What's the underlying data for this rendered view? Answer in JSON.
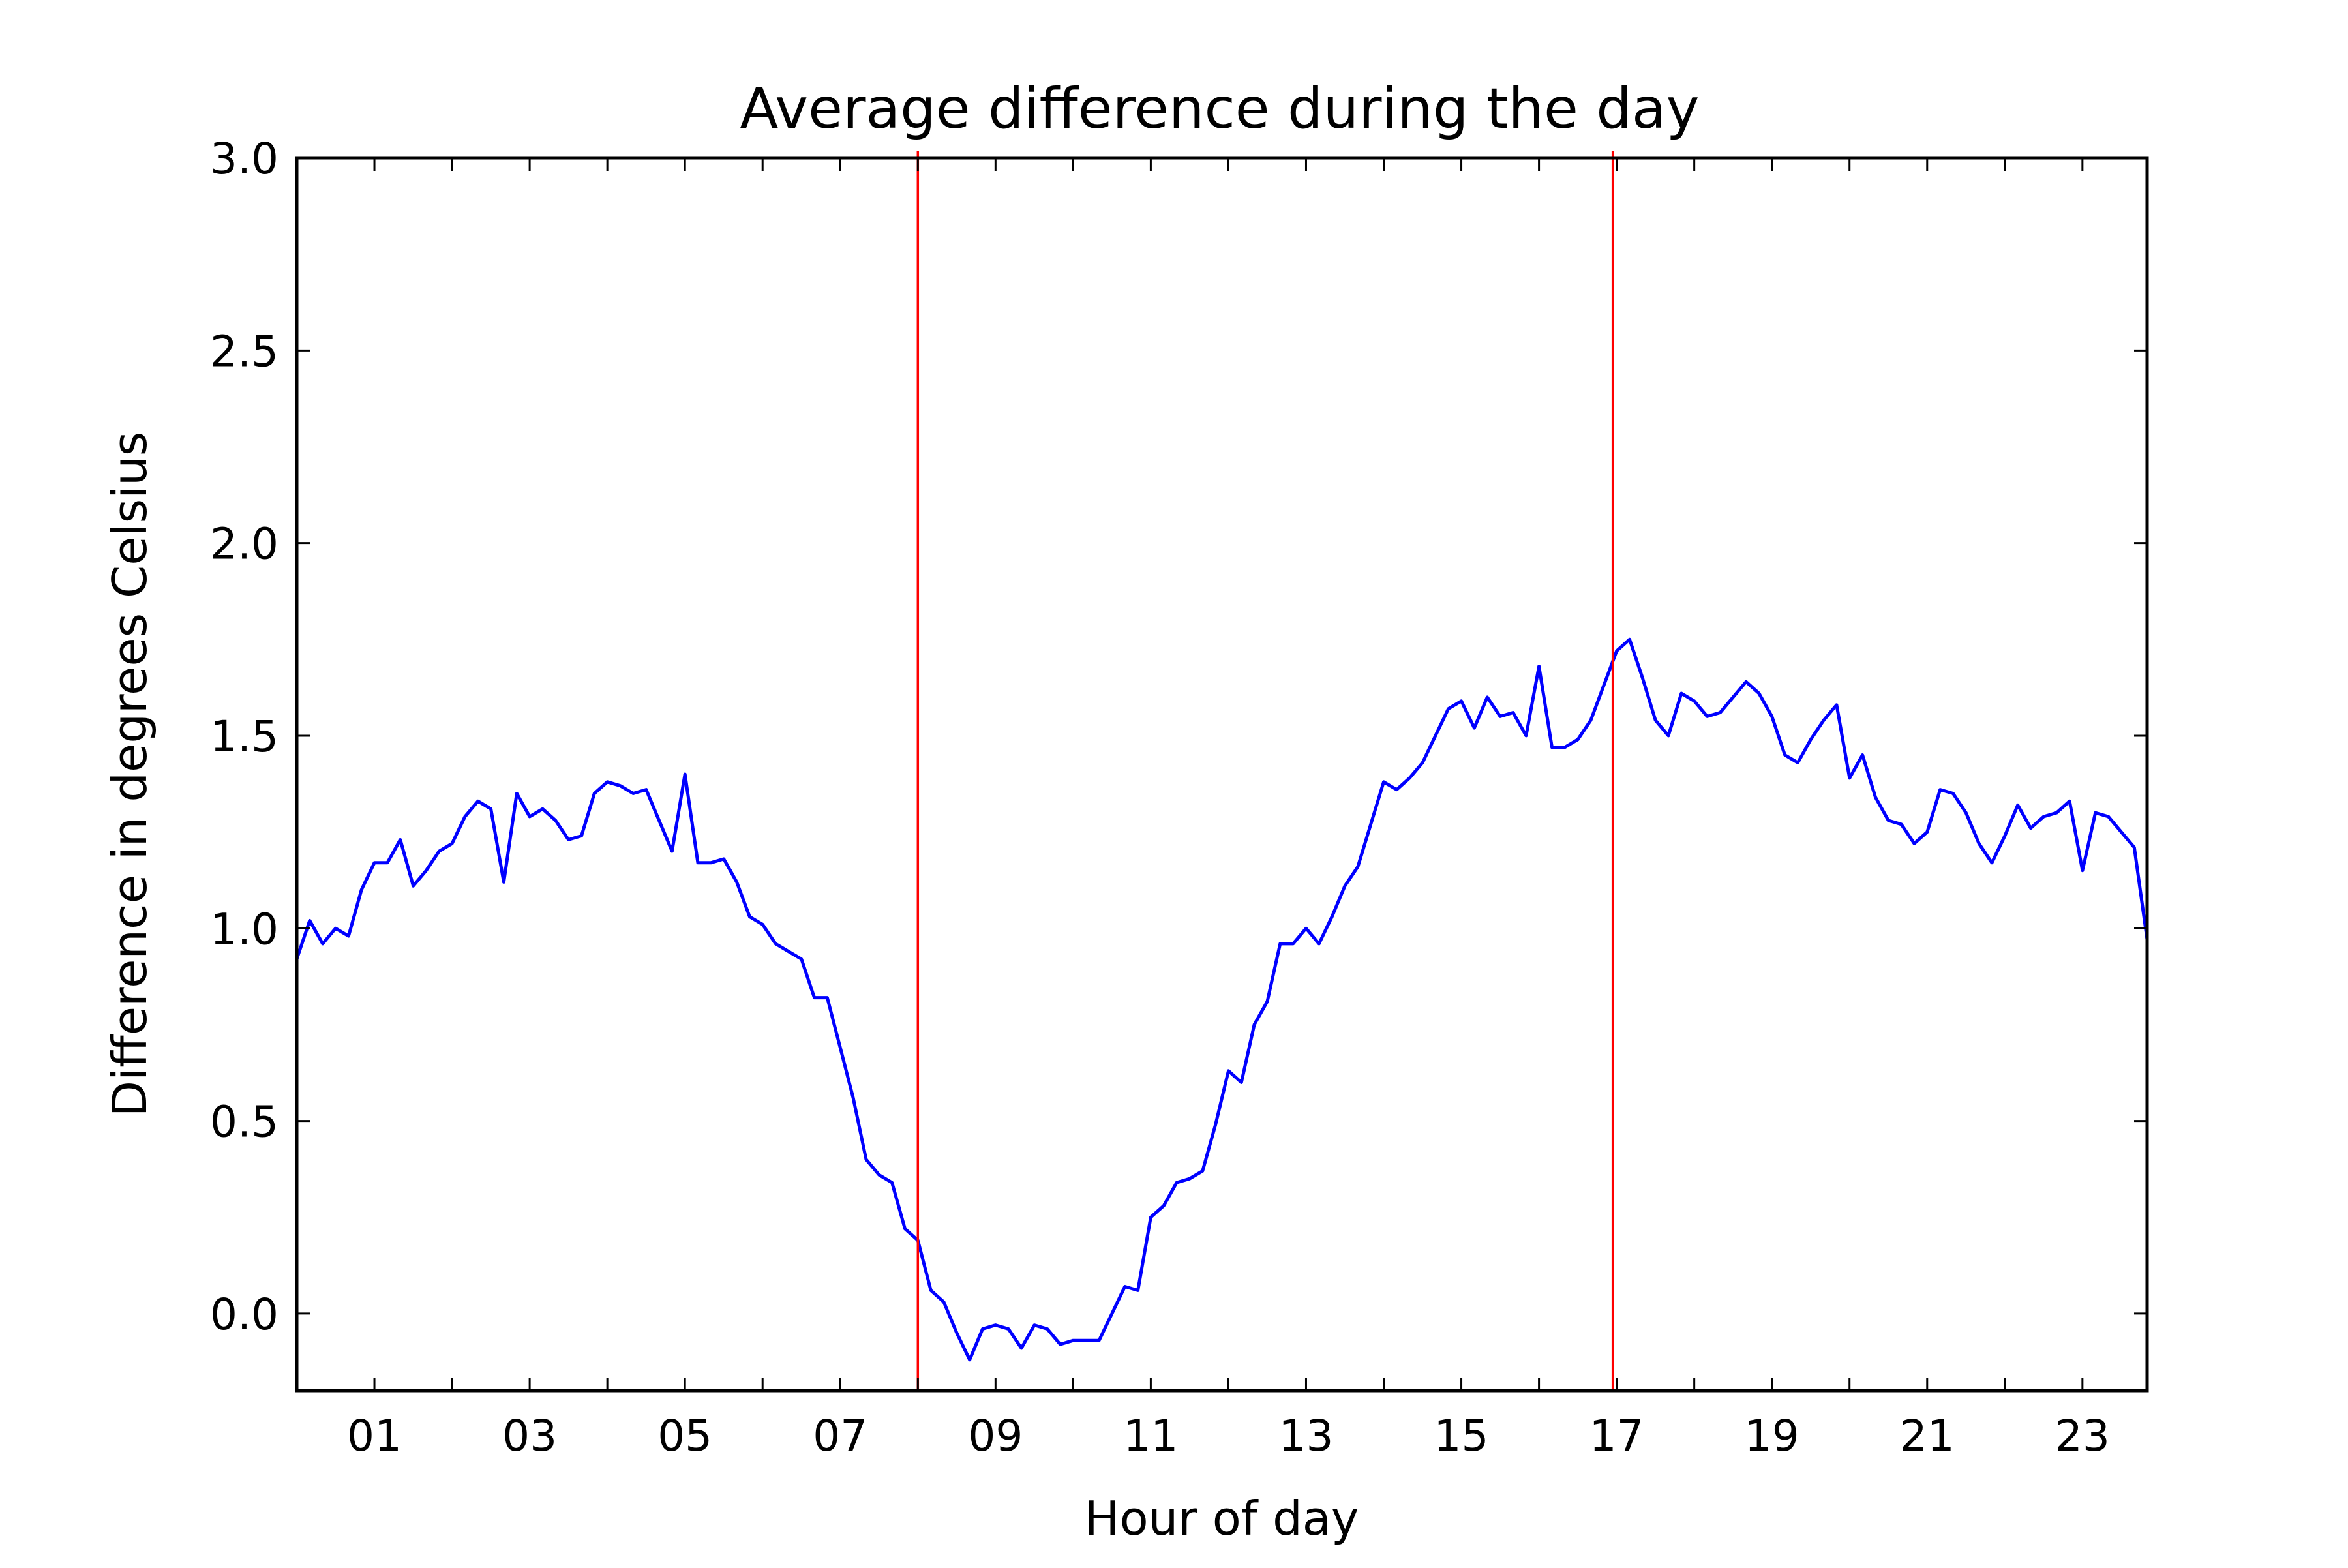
{
  "chart_data": {
    "type": "line",
    "title": "Average difference during the day",
    "xlabel": "Hour of day",
    "ylabel": "Difference in degrees Celsius",
    "xlim": [
      0,
      23.833
    ],
    "ylim": [
      -0.2,
      3.0
    ],
    "x_ticks": [
      {
        "value": 1,
        "label": "01"
      },
      {
        "value": 3,
        "label": "03"
      },
      {
        "value": 5,
        "label": "05"
      },
      {
        "value": 7,
        "label": "07"
      },
      {
        "value": 9,
        "label": "09"
      },
      {
        "value": 11,
        "label": "11"
      },
      {
        "value": 13,
        "label": "13"
      },
      {
        "value": 15,
        "label": "15"
      },
      {
        "value": 17,
        "label": "17"
      },
      {
        "value": 19,
        "label": "19"
      },
      {
        "value": 21,
        "label": "21"
      },
      {
        "value": 23,
        "label": "23"
      }
    ],
    "y_ticks": [
      {
        "value": 0.0,
        "label": "0.0"
      },
      {
        "value": 0.5,
        "label": "0.5"
      },
      {
        "value": 1.0,
        "label": "1.0"
      },
      {
        "value": 1.5,
        "label": "1.5"
      },
      {
        "value": 2.0,
        "label": "2.0"
      },
      {
        "value": 2.5,
        "label": "2.5"
      },
      {
        "value": 3.0,
        "label": "3.0"
      }
    ],
    "grid": false,
    "legend": "none",
    "reference_lines": [
      {
        "x": 8.0,
        "color": "#ff0000"
      },
      {
        "x": 16.95,
        "color": "#ff0000"
      }
    ],
    "series": [
      {
        "color": "#0000ff",
        "x_start": 0,
        "x_step": 0.16667,
        "values": [
          0.92,
          1.02,
          0.96,
          1.0,
          0.98,
          1.1,
          1.17,
          1.17,
          1.23,
          1.11,
          1.15,
          1.2,
          1.22,
          1.29,
          1.33,
          1.31,
          1.12,
          1.35,
          1.29,
          1.31,
          1.28,
          1.23,
          1.24,
          1.35,
          1.38,
          1.37,
          1.35,
          1.36,
          1.28,
          1.2,
          1.4,
          1.17,
          1.17,
          1.18,
          1.12,
          1.03,
          1.01,
          0.96,
          0.94,
          0.92,
          0.82,
          0.82,
          0.69,
          0.56,
          0.4,
          0.36,
          0.34,
          0.22,
          0.19,
          0.06,
          0.03,
          -0.05,
          -0.12,
          -0.04,
          -0.03,
          -0.04,
          -0.09,
          -0.03,
          -0.04,
          -0.08,
          -0.07,
          -0.07,
          -0.07,
          0.0,
          0.07,
          0.06,
          0.25,
          0.28,
          0.34,
          0.35,
          0.37,
          0.49,
          0.63,
          0.6,
          0.75,
          0.81,
          0.96,
          0.96,
          1.0,
          0.96,
          1.03,
          1.11,
          1.16,
          1.27,
          1.38,
          1.36,
          1.39,
          1.43,
          1.5,
          1.57,
          1.59,
          1.52,
          1.6,
          1.55,
          1.56,
          1.5,
          1.68,
          1.47,
          1.47,
          1.49,
          1.54,
          1.63,
          1.72,
          1.75,
          1.65,
          1.54,
          1.5,
          1.61,
          1.59,
          1.55,
          1.56,
          1.6,
          1.64,
          1.61,
          1.55,
          1.45,
          1.43,
          1.49,
          1.54,
          1.58,
          1.39,
          1.45,
          1.34,
          1.28,
          1.27,
          1.22,
          1.25,
          1.36,
          1.35,
          1.3,
          1.22,
          1.17,
          1.24,
          1.32,
          1.26,
          1.29,
          1.3,
          1.33,
          1.15,
          1.3,
          1.29,
          1.25,
          1.21,
          0.97
        ]
      }
    ]
  }
}
